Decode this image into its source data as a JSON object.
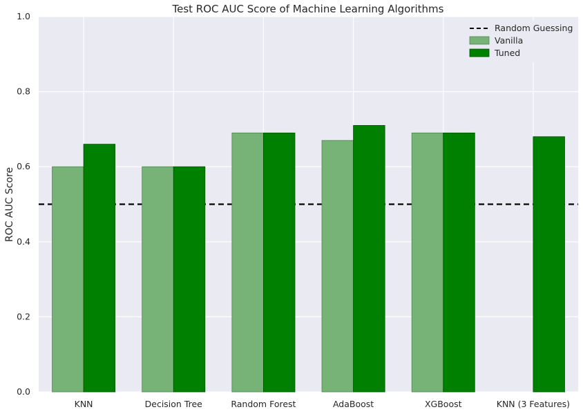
{
  "chart_data": {
    "type": "bar",
    "title": "Test ROC AUC Score of Machine Learning Algorithms",
    "xlabel": "",
    "ylabel": "ROC AUC Score",
    "ylim": [
      0,
      1.0
    ],
    "yticks": [
      "0.0",
      "0.2",
      "0.4",
      "0.6",
      "0.8",
      "1.0"
    ],
    "categories": [
      "KNN",
      "Decision Tree",
      "Random Forest",
      "AdaBoost",
      "XGBoost",
      "KNN (3 Features)"
    ],
    "series": [
      {
        "name": "Vanilla",
        "values": [
          0.6,
          0.6,
          0.69,
          0.67,
          0.69,
          0.0
        ],
        "color": "#77b377"
      },
      {
        "name": "Tuned",
        "values": [
          0.66,
          0.6,
          0.69,
          0.71,
          0.69,
          0.68
        ],
        "color": "#008000"
      }
    ],
    "reference_line": {
      "name": "Random Guessing",
      "value": 0.5,
      "style": "dashed",
      "color": "#000000"
    },
    "legend_position": "top-right",
    "grid": true,
    "background": "#eaeaf2"
  }
}
